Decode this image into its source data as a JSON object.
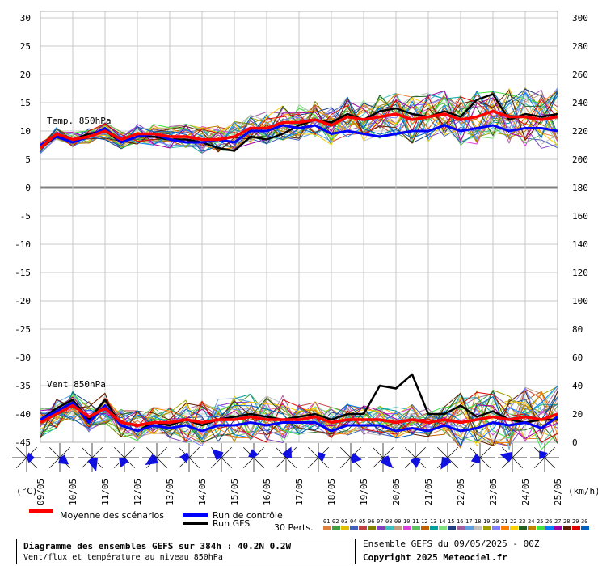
{
  "chart_data": {
    "type": "line",
    "panels": [
      {
        "label": "Temp. 850hPa",
        "ylim_left": [
          0,
          30
        ],
        "ylim_right": [
          180,
          300
        ],
        "left_ticks": [
          0,
          5,
          10,
          15,
          20,
          25,
          30
        ],
        "right_ticks": [
          180,
          200,
          220,
          240,
          260,
          280,
          300
        ]
      },
      {
        "label": "Vent 850hPa",
        "ylim_left": [
          -45,
          0
        ],
        "ylim_right": [
          0,
          180
        ],
        "left_ticks": [
          -45,
          -40,
          -35,
          -30,
          -25,
          -20,
          -15,
          -10,
          -5,
          0
        ],
        "right_ticks": [
          0,
          20,
          40,
          60,
          80,
          100,
          120,
          140,
          160,
          180
        ]
      }
    ],
    "x_ticks": [
      "09/05",
      "10/05",
      "11/05",
      "12/05",
      "13/05",
      "14/05",
      "15/05",
      "16/05",
      "17/05",
      "18/05",
      "19/05",
      "20/05",
      "21/05",
      "22/05",
      "23/05",
      "24/05",
      "25/05"
    ],
    "x_unit_left": "(°C)",
    "x_unit_right": "(km/h)",
    "temp_mean": [
      7.0,
      9.5,
      8.5,
      9.0,
      10.0,
      8.5,
      9.5,
      9.5,
      9.0,
      9.0,
      8.5,
      8.5,
      9.0,
      10.5,
      10.5,
      11.5,
      11.5,
      12.0,
      11.0,
      12.5,
      12.0,
      12.5,
      13.0,
      12.0,
      12.5,
      13.0,
      12.0,
      12.5,
      13.5,
      12.5,
      12.5,
      12.0,
      12.5
    ],
    "temp_control": [
      7.5,
      9.0,
      8.0,
      9.0,
      10.5,
      8.0,
      9.0,
      9.5,
      8.5,
      8.0,
      8.0,
      8.5,
      8.0,
      10.0,
      10.0,
      11.0,
      10.5,
      11.0,
      9.5,
      10.0,
      9.5,
      9.0,
      9.5,
      10.0,
      10.0,
      11.0,
      10.0,
      10.5,
      11.0,
      10.0,
      10.5,
      10.5,
      10.0
    ],
    "temp_gfs": [
      7.0,
      9.0,
      8.5,
      9.5,
      10.0,
      8.0,
      9.0,
      9.0,
      8.5,
      8.5,
      8.0,
      7.0,
      6.5,
      9.0,
      8.5,
      9.5,
      11.0,
      12.0,
      11.5,
      13.0,
      12.0,
      13.5,
      14.0,
      13.0,
      12.5,
      13.5,
      12.5,
      15.5,
      16.5,
      12.0,
      13.0,
      12.5,
      13.0
    ],
    "wind_mean": [
      -41.5,
      -40,
      -38.5,
      -40.5,
      -39,
      -41.5,
      -42,
      -41.5,
      -41.5,
      -41,
      -41.5,
      -41,
      -41,
      -40.5,
      -41,
      -41,
      -41,
      -40.5,
      -41.5,
      -41,
      -41,
      -41,
      -41.5,
      -41,
      -41.5,
      -41,
      -41.5,
      -41,
      -40.5,
      -41,
      -40.5,
      -41,
      -40
    ],
    "wind_control": [
      -41,
      -39.5,
      -38,
      -41.5,
      -38.5,
      -42,
      -43,
      -42,
      -42.5,
      -42,
      -43,
      -42,
      -42,
      -41.5,
      -42,
      -41.5,
      -41.5,
      -41.5,
      -43,
      -42,
      -42,
      -42,
      -43,
      -42.5,
      -43,
      -42,
      -43,
      -42.5,
      -41.5,
      -42,
      -41.5,
      -42.5,
      -40.5
    ],
    "wind_gfs": [
      -41,
      -39,
      -37.5,
      -41,
      -37.5,
      -42,
      -43,
      -41.5,
      -42,
      -41,
      -42,
      -41,
      -40.5,
      -40,
      -40.5,
      -41,
      -40.5,
      -40,
      -41,
      -40,
      -40,
      -35,
      -35.5,
      -33,
      -40,
      -40,
      -38.5,
      -40.5,
      -39.5,
      -41,
      -41.5,
      -41,
      -41
    ]
  },
  "legend": {
    "mean": "Moyenne des scénarios",
    "control": "Run de contrôle",
    "gfs": "Run GFS",
    "perts": "30 Perts.",
    "pert_ids": [
      "01",
      "02",
      "03",
      "04",
      "05",
      "06",
      "07",
      "08",
      "09",
      "10",
      "11",
      "12",
      "13",
      "14",
      "15",
      "16",
      "17",
      "18",
      "19",
      "20",
      "21",
      "22",
      "23",
      "24",
      "25",
      "26",
      "27",
      "28",
      "29",
      "30"
    ]
  },
  "footer": {
    "title": "Diagramme des ensembles GEFS sur 384h : 40.2N 0.2W",
    "subtitle": "Vent/flux et température au niveau 850hPa",
    "run": "Ensemble GEFS du 09/05/2025 - 00Z",
    "copyright": "Copyright 2025 Meteociel.fr"
  },
  "colors": {
    "mean": "#ff0000",
    "control": "#0000ff",
    "gfs": "#000000",
    "grid": "#c8c8c8",
    "rose": "#1010e0",
    "perts": [
      "#e08040",
      "#40a040",
      "#e0c000",
      "#4060c0",
      "#c04040",
      "#808000",
      "#8040c0",
      "#40c0c0",
      "#c0a080",
      "#e040e0",
      "#60c060",
      "#c06000",
      "#00a0a0",
      "#80e080",
      "#204080",
      "#a060a0",
      "#60a0e0",
      "#c0c0c0",
      "#a0a000",
      "#8080ff",
      "#ff8000",
      "#ffd000",
      "#206020",
      "#c08000",
      "#40e040",
      "#0080ff",
      "#a000a0",
      "#602000",
      "#e00000",
      "#0060c0"
    ]
  }
}
